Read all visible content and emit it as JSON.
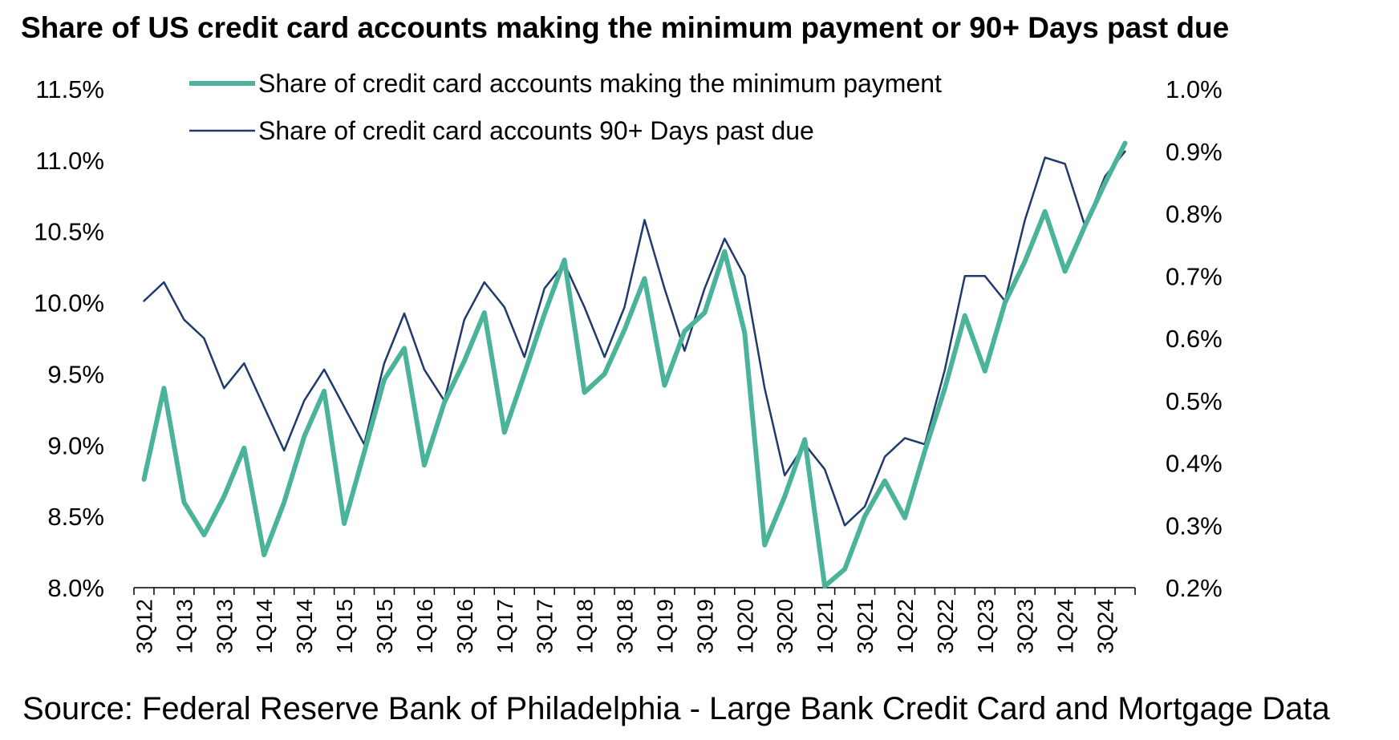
{
  "colors": {
    "min_payment": "#4cb39b",
    "past_due": "#1f3a6b"
  },
  "chart_data": {
    "type": "line",
    "title": "Share of US credit card accounts making the minimum payment or 90+ Days past due",
    "source": "Source: Federal Reserve Bank of Philadelphia - Large Bank Credit Card and Mortgage Data",
    "categories": [
      "3Q12",
      "4Q12",
      "1Q13",
      "2Q13",
      "3Q13",
      "4Q13",
      "1Q14",
      "2Q14",
      "3Q14",
      "4Q14",
      "1Q15",
      "2Q15",
      "3Q15",
      "4Q15",
      "1Q16",
      "2Q16",
      "3Q16",
      "4Q16",
      "1Q17",
      "2Q17",
      "3Q17",
      "4Q17",
      "1Q18",
      "2Q18",
      "3Q18",
      "4Q18",
      "1Q19",
      "2Q19",
      "3Q19",
      "4Q19",
      "1Q20",
      "2Q20",
      "3Q20",
      "4Q20",
      "1Q21",
      "2Q21",
      "3Q21",
      "4Q21",
      "1Q22",
      "2Q22",
      "3Q22",
      "4Q22",
      "1Q23",
      "2Q23",
      "3Q23",
      "4Q23",
      "1Q24",
      "2Q24",
      "3Q24",
      "4Q24"
    ],
    "x_tick_labels": [
      "3Q12",
      "1Q13",
      "3Q13",
      "1Q14",
      "3Q14",
      "1Q15",
      "3Q15",
      "1Q16",
      "3Q16",
      "1Q17",
      "3Q17",
      "1Q18",
      "3Q18",
      "1Q19",
      "3Q19",
      "1Q20",
      "3Q20",
      "1Q21",
      "3Q21",
      "1Q22",
      "3Q22",
      "1Q23",
      "3Q23",
      "1Q24",
      "3Q24"
    ],
    "y_left": {
      "min": 8.0,
      "max": 11.5,
      "ticks": [
        "8.0%",
        "8.5%",
        "9.0%",
        "9.5%",
        "10.0%",
        "10.5%",
        "11.0%",
        "11.5%"
      ]
    },
    "y_right": {
      "min": 0.2,
      "max": 1.0,
      "ticks": [
        "0.2%",
        "0.3%",
        "0.4%",
        "0.5%",
        "0.6%",
        "0.7%",
        "0.8%",
        "0.9%",
        "1.0%"
      ]
    },
    "legend_position": "top-center",
    "series": [
      {
        "name": "Share of credit card accounts making the minimum payment",
        "axis": "left",
        "values": [
          8.76,
          9.4,
          8.6,
          8.37,
          8.64,
          8.98,
          8.23,
          8.6,
          9.06,
          9.38,
          8.45,
          8.95,
          9.46,
          9.68,
          8.86,
          9.3,
          9.59,
          9.93,
          9.09,
          9.5,
          9.92,
          10.3,
          9.37,
          9.5,
          9.81,
          10.17,
          9.42,
          9.8,
          9.93,
          10.36,
          9.79,
          8.3,
          8.64,
          9.04,
          8.01,
          8.13,
          8.5,
          8.75,
          8.49,
          8.96,
          9.4,
          9.91,
          9.52,
          10.0,
          10.29,
          10.64,
          10.22,
          10.54,
          10.84,
          11.12
        ]
      },
      {
        "name": "Share of credit card accounts 90+ Days past due",
        "axis": "right",
        "values": [
          0.66,
          0.69,
          0.63,
          0.6,
          0.52,
          0.56,
          0.49,
          0.42,
          0.5,
          0.55,
          0.49,
          0.43,
          0.56,
          0.64,
          0.55,
          0.5,
          0.63,
          0.69,
          0.65,
          0.57,
          0.68,
          0.72,
          0.65,
          0.57,
          0.65,
          0.79,
          0.68,
          0.58,
          0.68,
          0.76,
          0.7,
          0.52,
          0.38,
          0.43,
          0.39,
          0.3,
          0.33,
          0.41,
          0.44,
          0.43,
          0.55,
          0.7,
          0.7,
          0.66,
          0.79,
          0.89,
          0.88,
          0.78,
          0.86,
          0.9
        ]
      }
    ]
  }
}
